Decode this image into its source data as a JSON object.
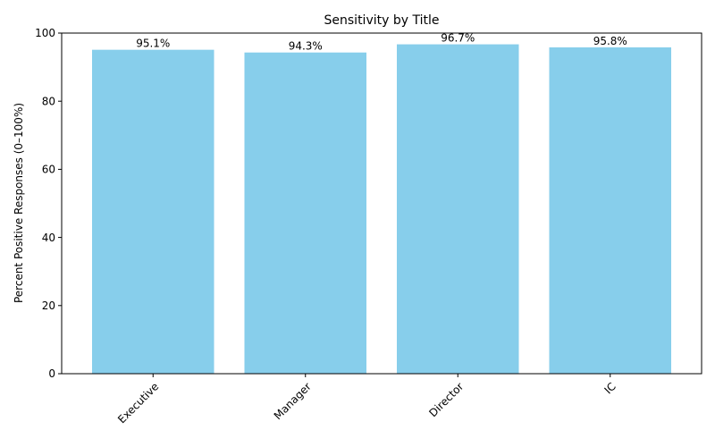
{
  "chart_data": {
    "type": "bar",
    "title": "Sensitivity by Title",
    "xlabel": "",
    "ylabel": "Percent Positive Responses (0–100%)",
    "categories": [
      "Executive",
      "Manager",
      "Director",
      "IC"
    ],
    "values": [
      95.1,
      94.3,
      96.7,
      95.8
    ],
    "data_labels": [
      "95.1%",
      "94.3%",
      "96.7%",
      "95.8%"
    ],
    "ylim": [
      0,
      100
    ],
    "yticks": [
      0,
      20,
      40,
      60,
      80,
      100
    ],
    "ytick_labels": [
      "0",
      "20",
      "40",
      "60",
      "80",
      "100"
    ],
    "bar_color": "#87CEEB",
    "grid": false,
    "xtick_rotation_deg": 45
  }
}
